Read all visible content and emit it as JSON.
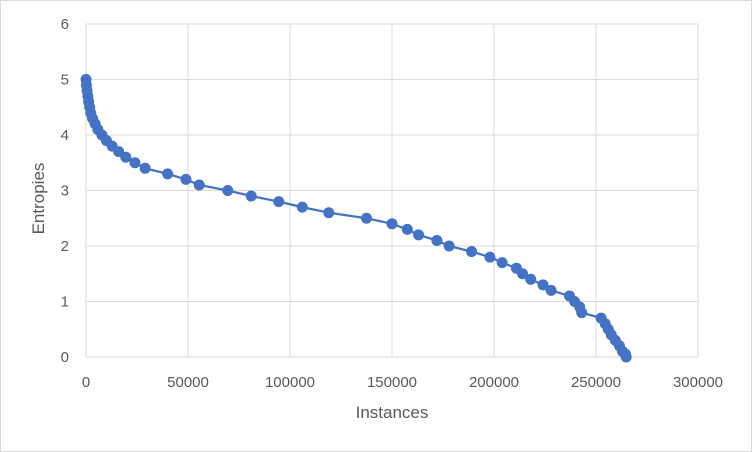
{
  "chart_data": {
    "type": "line",
    "title": "",
    "xlabel": "Instances",
    "ylabel": "Entropies",
    "xlim": [
      0,
      300000
    ],
    "ylim": [
      0,
      6
    ],
    "x_ticks": [
      0,
      50000,
      100000,
      150000,
      200000,
      250000,
      300000
    ],
    "y_ticks": [
      0,
      1,
      2,
      3,
      4,
      5,
      6
    ],
    "grid": true,
    "legend": "none",
    "series": [
      {
        "color": "#4472c4",
        "marker": "circle",
        "points": [
          [
            0,
            5.0
          ],
          [
            200,
            4.9
          ],
          [
            500,
            4.8
          ],
          [
            900,
            4.7
          ],
          [
            1300,
            4.6
          ],
          [
            1800,
            4.5
          ],
          [
            2300,
            4.4
          ],
          [
            3200,
            4.3
          ],
          [
            4500,
            4.2
          ],
          [
            5800,
            4.1
          ],
          [
            7800,
            4.0
          ],
          [
            10000,
            3.9
          ],
          [
            12800,
            3.8
          ],
          [
            16000,
            3.7
          ],
          [
            19500,
            3.6
          ],
          [
            24000,
            3.5
          ],
          [
            29000,
            3.4
          ],
          [
            40000,
            3.3
          ],
          [
            49000,
            3.2
          ],
          [
            55500,
            3.1
          ],
          [
            69500,
            3.0
          ],
          [
            81000,
            2.9
          ],
          [
            94500,
            2.8
          ],
          [
            106000,
            2.7
          ],
          [
            119000,
            2.6
          ],
          [
            137500,
            2.5
          ],
          [
            150000,
            2.4
          ],
          [
            157500,
            2.3
          ],
          [
            163000,
            2.2
          ],
          [
            172000,
            2.1
          ],
          [
            178000,
            2.0
          ],
          [
            189000,
            1.9
          ],
          [
            198000,
            1.8
          ],
          [
            204000,
            1.7
          ],
          [
            211000,
            1.6
          ],
          [
            214000,
            1.5
          ],
          [
            218000,
            1.4
          ],
          [
            224000,
            1.3
          ],
          [
            228000,
            1.2
          ],
          [
            237000,
            1.1
          ],
          [
            239500,
            1.0
          ],
          [
            242000,
            0.9
          ],
          [
            243000,
            0.8
          ],
          [
            252500,
            0.7
          ],
          [
            254500,
            0.6
          ],
          [
            256000,
            0.5
          ],
          [
            257500,
            0.4
          ],
          [
            259500,
            0.3
          ],
          [
            261500,
            0.2
          ],
          [
            263000,
            0.1
          ],
          [
            264500,
            0.05
          ],
          [
            264800,
            0.0
          ]
        ]
      }
    ]
  }
}
